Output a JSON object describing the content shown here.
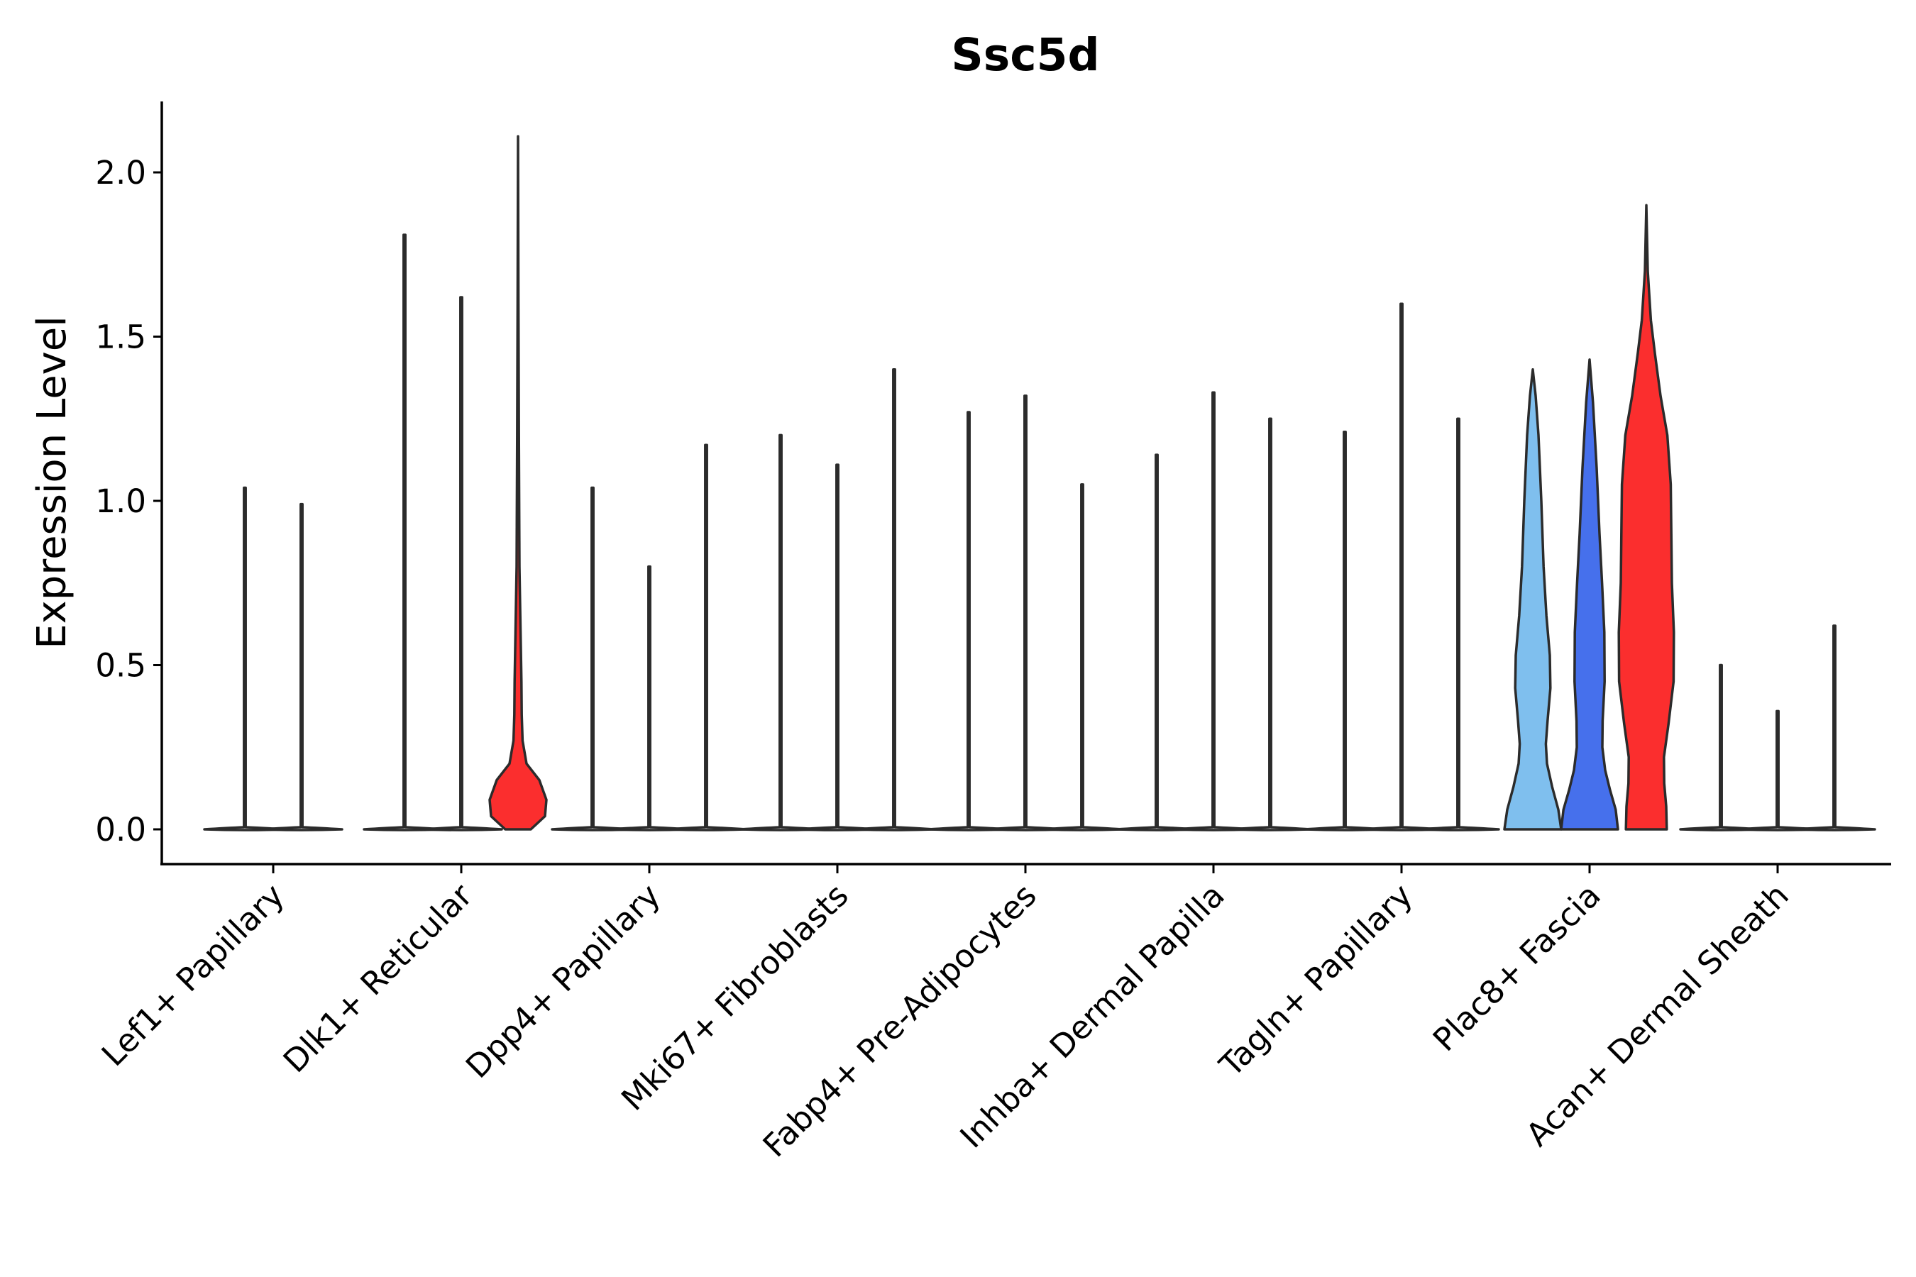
{
  "chart_data": {
    "type": "violin",
    "title": "Ssc5d",
    "xlabel": "",
    "ylabel": "Expression Level",
    "ylim": [
      -0.11,
      2.22
    ],
    "yticks": [
      0.0,
      0.5,
      1.0,
      1.5,
      2.0
    ],
    "ytick_labels": [
      "0.0",
      "0.5",
      "1.0",
      "1.5",
      "2.0"
    ],
    "legend": "none",
    "grid": false,
    "categories": [
      "Lef1+ Papillary",
      "Dlk1+ Reticular",
      "Dpp4+ Papillary",
      "Mki67+ Fibroblasts",
      "Fabp4+ Pre-Adipocytes",
      "Inhba+ Dermal Papilla",
      "Tagln+ Papillary",
      "Plac8+ Fascia",
      "Acan+ Dermal Sheath"
    ],
    "colors": {
      "none": "#ffffff",
      "red": "#fb2e2e",
      "light_blue": "#7fbfee",
      "blue": "#4670ec",
      "outline": "#2b2b2b"
    },
    "groups": [
      {
        "category": "Lef1+ Papillary",
        "violins": [
          {
            "max": 1.04,
            "fill": "none"
          },
          {
            "max": 0.99,
            "fill": "none"
          }
        ]
      },
      {
        "category": "Dlk1+ Reticular",
        "violins": [
          {
            "max": 1.81,
            "fill": "none"
          },
          {
            "max": 1.62,
            "fill": "none"
          },
          {
            "max": 2.11,
            "fill": "red",
            "profile": [
              [
                0,
                0.45
              ],
              [
                0.04,
                0.95
              ],
              [
                0.09,
                1.0
              ],
              [
                0.15,
                0.75
              ],
              [
                0.2,
                0.3
              ],
              [
                0.27,
                0.16
              ],
              [
                0.35,
                0.13
              ],
              [
                0.45,
                0.12
              ],
              [
                0.6,
                0.09
              ],
              [
                0.8,
                0.05
              ],
              [
                1.2,
                0.03
              ],
              [
                1.6,
                0.015
              ],
              [
                2.11,
                0
              ]
            ]
          }
        ]
      },
      {
        "category": "Dpp4+ Papillary",
        "violins": [
          {
            "max": 1.04,
            "fill": "none"
          },
          {
            "max": 0.8,
            "fill": "none"
          },
          {
            "max": 1.17,
            "fill": "none"
          }
        ]
      },
      {
        "category": "Mki67+ Fibroblasts",
        "violins": [
          {
            "max": 1.2,
            "fill": "none"
          },
          {
            "max": 1.11,
            "fill": "none"
          },
          {
            "max": 1.4,
            "fill": "none"
          }
        ]
      },
      {
        "category": "Fabp4+ Pre-Adipocytes",
        "violins": [
          {
            "max": 1.27,
            "fill": "none"
          },
          {
            "max": 1.32,
            "fill": "none"
          },
          {
            "max": 1.05,
            "fill": "none"
          }
        ]
      },
      {
        "category": "Inhba+ Dermal Papilla",
        "violins": [
          {
            "max": 1.14,
            "fill": "none"
          },
          {
            "max": 1.33,
            "fill": "none"
          },
          {
            "max": 1.25,
            "fill": "none"
          }
        ]
      },
      {
        "category": "Tagln+ Papillary",
        "violins": [
          {
            "max": 1.21,
            "fill": "none"
          },
          {
            "max": 1.6,
            "fill": "none"
          },
          {
            "max": 1.25,
            "fill": "none"
          }
        ]
      },
      {
        "category": "Plac8+ Fascia",
        "violins": [
          {
            "max": 1.4,
            "fill": "light_blue",
            "profile": [
              [
                0,
                1.0
              ],
              [
                0.06,
                0.9
              ],
              [
                0.13,
                0.68
              ],
              [
                0.2,
                0.5
              ],
              [
                0.26,
                0.46
              ],
              [
                0.33,
                0.52
              ],
              [
                0.43,
                0.62
              ],
              [
                0.53,
                0.6
              ],
              [
                0.65,
                0.48
              ],
              [
                0.8,
                0.38
              ],
              [
                1.0,
                0.3
              ],
              [
                1.2,
                0.2
              ],
              [
                1.32,
                0.1
              ],
              [
                1.4,
                0
              ]
            ]
          },
          {
            "max": 1.43,
            "fill": "blue",
            "profile": [
              [
                0,
                1.0
              ],
              [
                0.06,
                0.92
              ],
              [
                0.12,
                0.72
              ],
              [
                0.18,
                0.55
              ],
              [
                0.25,
                0.45
              ],
              [
                0.33,
                0.46
              ],
              [
                0.45,
                0.53
              ],
              [
                0.6,
                0.52
              ],
              [
                0.75,
                0.44
              ],
              [
                0.9,
                0.35
              ],
              [
                1.1,
                0.25
              ],
              [
                1.3,
                0.12
              ],
              [
                1.43,
                0
              ]
            ]
          },
          {
            "max": 1.9,
            "fill": "red",
            "profile": [
              [
                0,
                0.72
              ],
              [
                0.07,
                0.7
              ],
              [
                0.14,
                0.63
              ],
              [
                0.22,
                0.62
              ],
              [
                0.32,
                0.78
              ],
              [
                0.45,
                0.96
              ],
              [
                0.6,
                0.97
              ],
              [
                0.75,
                0.9
              ],
              [
                0.9,
                0.88
              ],
              [
                1.05,
                0.86
              ],
              [
                1.2,
                0.74
              ],
              [
                1.32,
                0.5
              ],
              [
                1.45,
                0.3
              ],
              [
                1.55,
                0.16
              ],
              [
                1.7,
                0.05
              ],
              [
                1.9,
                0
              ]
            ]
          }
        ]
      },
      {
        "category": "Acan+ Dermal Sheath",
        "violins": [
          {
            "max": 0.5,
            "fill": "none"
          },
          {
            "max": 0.36,
            "fill": "none"
          },
          {
            "max": 0.62,
            "fill": "none"
          }
        ]
      }
    ]
  }
}
